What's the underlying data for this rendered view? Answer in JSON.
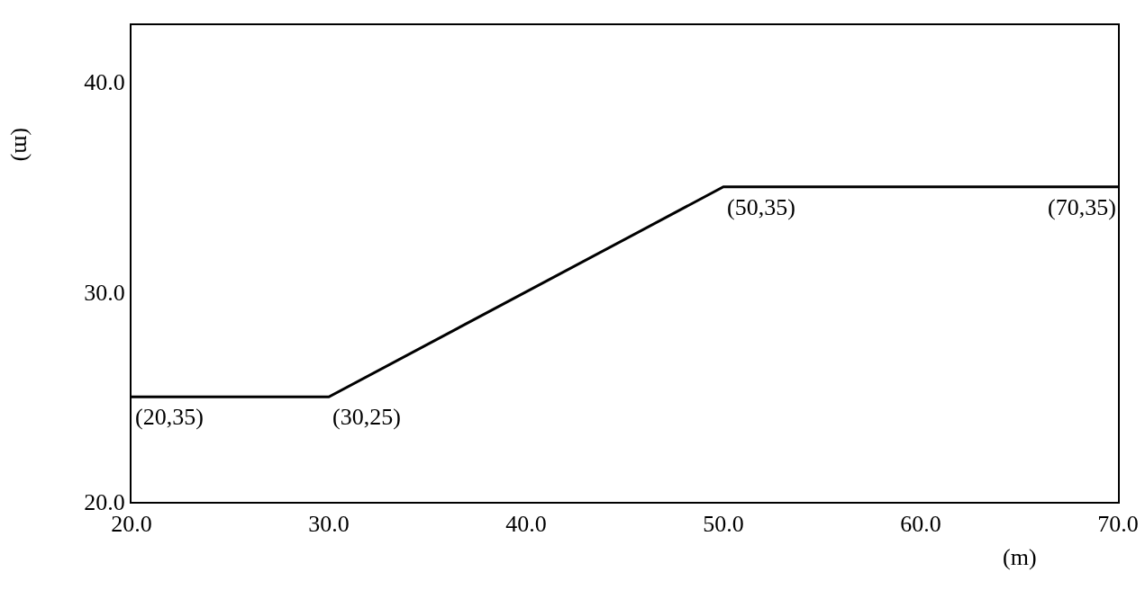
{
  "chart_data": {
    "type": "line",
    "x": [
      20,
      30,
      50,
      70
    ],
    "values": [
      25,
      25,
      35,
      35
    ],
    "color": "#000000",
    "marker": "none",
    "line_style": "solid",
    "xlim": [
      20,
      70
    ],
    "ylim": [
      20,
      42.7
    ],
    "xticks": [
      {
        "value": 20,
        "label": "20.0"
      },
      {
        "value": 30,
        "label": "30.0"
      },
      {
        "value": 40,
        "label": "40.0"
      },
      {
        "value": 50,
        "label": "50.0"
      },
      {
        "value": 60,
        "label": "60.0"
      },
      {
        "value": 70,
        "label": "70.0"
      }
    ],
    "yticks": [
      {
        "value": 20,
        "label": "20.0"
      },
      {
        "value": 30,
        "label": "30.0"
      },
      {
        "value": 40,
        "label": "40.0"
      }
    ],
    "xlabel": "(m)",
    "ylabel": "(m)",
    "grid": false,
    "legend": false,
    "annotations": [
      {
        "text": "(20,35)",
        "x": 20,
        "y": 25
      },
      {
        "text": "(30,25)",
        "x": 30,
        "y": 25
      },
      {
        "text": "(50,35)",
        "x": 50,
        "y": 35
      },
      {
        "text": "(70,35)",
        "x": 70,
        "y": 35
      }
    ]
  }
}
